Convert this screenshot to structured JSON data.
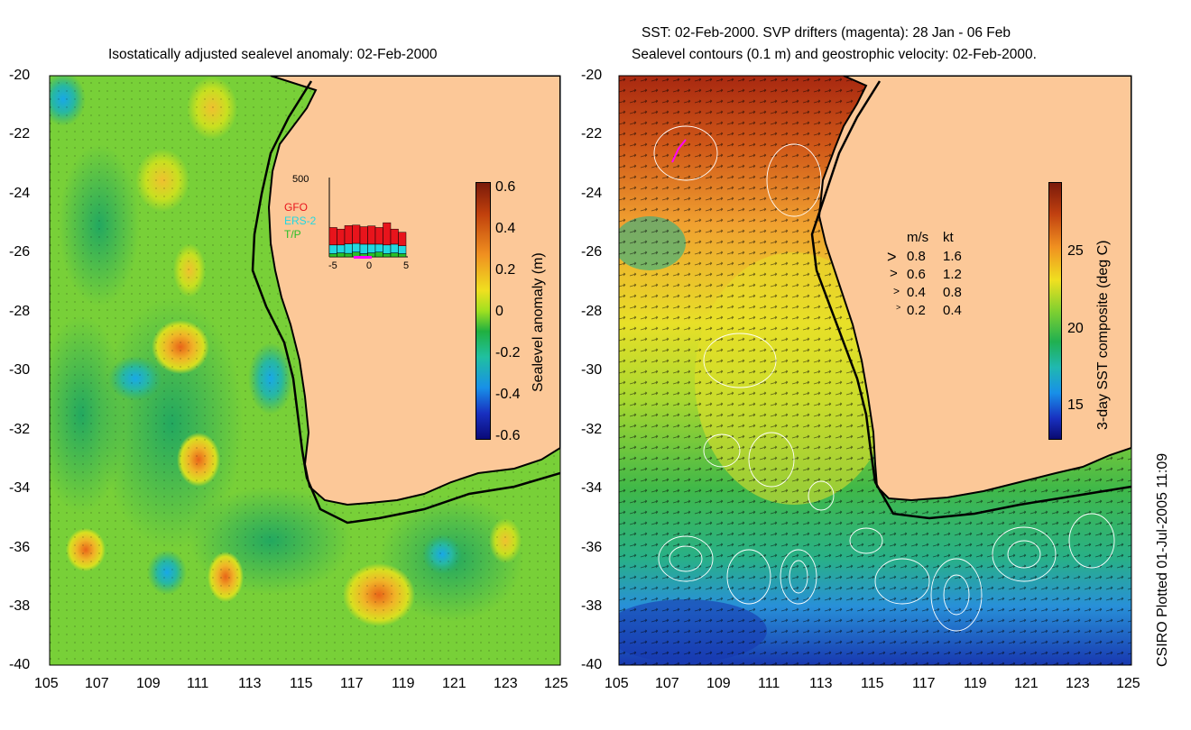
{
  "left_panel": {
    "title": "Isostatically adjusted sealevel anomaly: 02-Feb-2000",
    "y_ticks": [
      "-20",
      "-22",
      "-24",
      "-26",
      "-28",
      "-30",
      "-32",
      "-34",
      "-36",
      "-38",
      "-40"
    ],
    "x_ticks": [
      "105",
      "107",
      "109",
      "111",
      "113",
      "115",
      "117",
      "119",
      "121",
      "123",
      "125"
    ],
    "colorbar": {
      "label": "Sealevel anomaly (m)",
      "ticks": [
        "0.6",
        "0.4",
        "0.2",
        "0",
        "-0.2",
        "-0.4",
        "-0.6"
      ]
    },
    "inset": {
      "y_max_label": "500",
      "x_ticks": [
        "-5",
        "0",
        "5"
      ],
      "legend": [
        {
          "label": "GFO",
          "color": "#e8141c"
        },
        {
          "label": "ERS-2",
          "color": "#22d8e0"
        },
        {
          "label": "T/P",
          "color": "#28c028"
        }
      ],
      "bars": [
        {
          "tp": 20,
          "ers": 55,
          "gfo": 110
        },
        {
          "tp": 25,
          "ers": 50,
          "gfo": 100
        },
        {
          "tp": 22,
          "ers": 60,
          "gfo": 115
        },
        {
          "tp": 30,
          "ers": 55,
          "gfo": 115
        },
        {
          "tp": 20,
          "ers": 60,
          "gfo": 110
        },
        {
          "tp": 25,
          "ers": 55,
          "gfo": 115
        },
        {
          "tp": 30,
          "ers": 50,
          "gfo": 105
        },
        {
          "tp": 20,
          "ers": 55,
          "gfo": 140
        },
        {
          "tp": 25,
          "ers": 55,
          "gfo": 95
        },
        {
          "tp": 20,
          "ers": 50,
          "gfo": 85
        }
      ]
    }
  },
  "right_panel": {
    "title_line1": "SST: 02-Feb-2000. SVP drifters (magenta): 28 Jan - 06 Feb",
    "title_line2": "Sealevel contours (0.1 m) and geostrophic velocity: 02-Feb-2000.",
    "y_ticks": [
      "-20",
      "-22",
      "-24",
      "-26",
      "-28",
      "-30",
      "-32",
      "-34",
      "-36",
      "-38",
      "-40"
    ],
    "x_ticks": [
      "105",
      "107",
      "109",
      "111",
      "113",
      "115",
      "117",
      "119",
      "121",
      "123",
      "125"
    ],
    "colorbar": {
      "label": "3-day SST composite (deg C)",
      "ticks": [
        "25",
        "20",
        "15"
      ]
    },
    "velocity_legend": {
      "header_ms": "m/s",
      "header_kt": "kt",
      "rows": [
        {
          "ms": "0.8",
          "kt": "1.6"
        },
        {
          "ms": "0.6",
          "kt": "1.2"
        },
        {
          "ms": "0.4",
          "kt": "0.8"
        },
        {
          "ms": "0.2",
          "kt": "0.4"
        }
      ]
    }
  },
  "credit": "CSIRO Plotted 01-Jul-2005 11:09",
  "colors": {
    "land": "#fcc898",
    "coast": "#000000"
  }
}
